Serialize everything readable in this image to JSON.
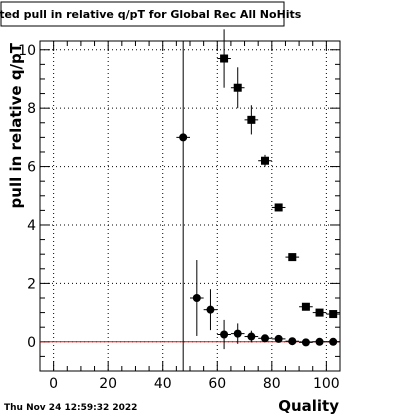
{
  "title": "Fitted pull in relative q/pT for Global Rec All NoHits",
  "timestamp": "Thu Nov 24 12:59:32 2022",
  "colors": {
    "frame": "#000000",
    "grid": "#000000",
    "zero_line": "#ff0000",
    "markers": "#000000"
  },
  "chart_data": {
    "type": "scatter",
    "title": "Fitted pull in relative q/pT for Global Rec All NoHits",
    "xlabel": "Quality",
    "ylabel": "pull in relative q/pT",
    "xlim": [
      -5,
      105
    ],
    "ylim": [
      -1,
      10.3
    ],
    "xticks": [
      0,
      20,
      40,
      60,
      80,
      100
    ],
    "yticks": [
      0,
      2,
      4,
      6,
      8,
      10
    ],
    "grid": true,
    "reference_line": {
      "y": 0,
      "color": "#ff0000"
    },
    "vertical_line": {
      "x": 47.5
    },
    "series": [
      {
        "marker": "square",
        "points": [
          {
            "x": 62.5,
            "y": 9.7,
            "err": 1.0
          },
          {
            "x": 67.5,
            "y": 8.7,
            "err": 0.7
          },
          {
            "x": 72.5,
            "y": 7.6,
            "err": 0.5
          },
          {
            "x": 77.5,
            "y": 6.2,
            "err": 0.2
          },
          {
            "x": 82.5,
            "y": 4.6,
            "err": 0.1
          },
          {
            "x": 87.5,
            "y": 2.9,
            "err": 0.1
          },
          {
            "x": 92.5,
            "y": 1.2,
            "err": 0.08
          },
          {
            "x": 97.5,
            "y": 1.0,
            "err": 0.05
          },
          {
            "x": 102.5,
            "y": 0.95,
            "err": 0.05
          }
        ]
      },
      {
        "marker": "circle",
        "points": [
          {
            "x": 47.5,
            "y": 7.0,
            "err": 0.0
          },
          {
            "x": 52.5,
            "y": 1.5,
            "err": 1.3
          },
          {
            "x": 57.5,
            "y": 1.1,
            "err": 0.7
          },
          {
            "x": 62.5,
            "y": 0.25,
            "err": 0.5
          },
          {
            "x": 67.5,
            "y": 0.28,
            "err": 0.35
          },
          {
            "x": 72.5,
            "y": 0.18,
            "err": 0.2
          },
          {
            "x": 77.5,
            "y": 0.12,
            "err": 0.1
          },
          {
            "x": 82.5,
            "y": 0.1,
            "err": 0.08
          },
          {
            "x": 87.5,
            "y": 0.02,
            "err": 0.06
          },
          {
            "x": 92.5,
            "y": -0.02,
            "err": 0.05
          },
          {
            "x": 97.5,
            "y": 0.0,
            "err": 0.04
          },
          {
            "x": 102.5,
            "y": 0.0,
            "err": 0.04
          }
        ]
      }
    ]
  }
}
